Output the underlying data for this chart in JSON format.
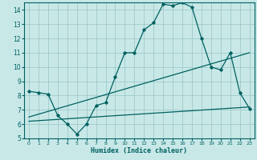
{
  "bg_color": "#c8e8e8",
  "grid_color": "#a0c8c8",
  "line_color": "#006060",
  "xlabel": "Humidex (Indice chaleur)",
  "xlim": [
    -0.5,
    23.5
  ],
  "ylim": [
    5,
    14.5
  ],
  "xticks": [
    0,
    1,
    2,
    3,
    4,
    5,
    6,
    7,
    8,
    9,
    10,
    11,
    12,
    13,
    14,
    15,
    16,
    17,
    18,
    19,
    20,
    21,
    22,
    23
  ],
  "yticks": [
    5,
    6,
    7,
    8,
    9,
    10,
    11,
    12,
    13,
    14
  ],
  "curve1_x": [
    0,
    1,
    2,
    3,
    4,
    5,
    6,
    7,
    8,
    9,
    10,
    11,
    12,
    13,
    14,
    15,
    16,
    17,
    18,
    19,
    20,
    21,
    22,
    23
  ],
  "curve1_y": [
    8.3,
    8.2,
    8.1,
    6.6,
    6.0,
    5.3,
    6.0,
    7.3,
    7.5,
    9.3,
    11.0,
    11.0,
    12.6,
    13.1,
    14.4,
    14.3,
    14.5,
    14.2,
    12.0,
    10.0,
    9.8,
    11.0,
    8.2,
    7.1
  ],
  "curve2_x": [
    0,
    23
  ],
  "curve2_y": [
    6.5,
    11.0
  ],
  "curve3_x": [
    0,
    23
  ],
  "curve3_y": [
    6.2,
    7.2
  ]
}
